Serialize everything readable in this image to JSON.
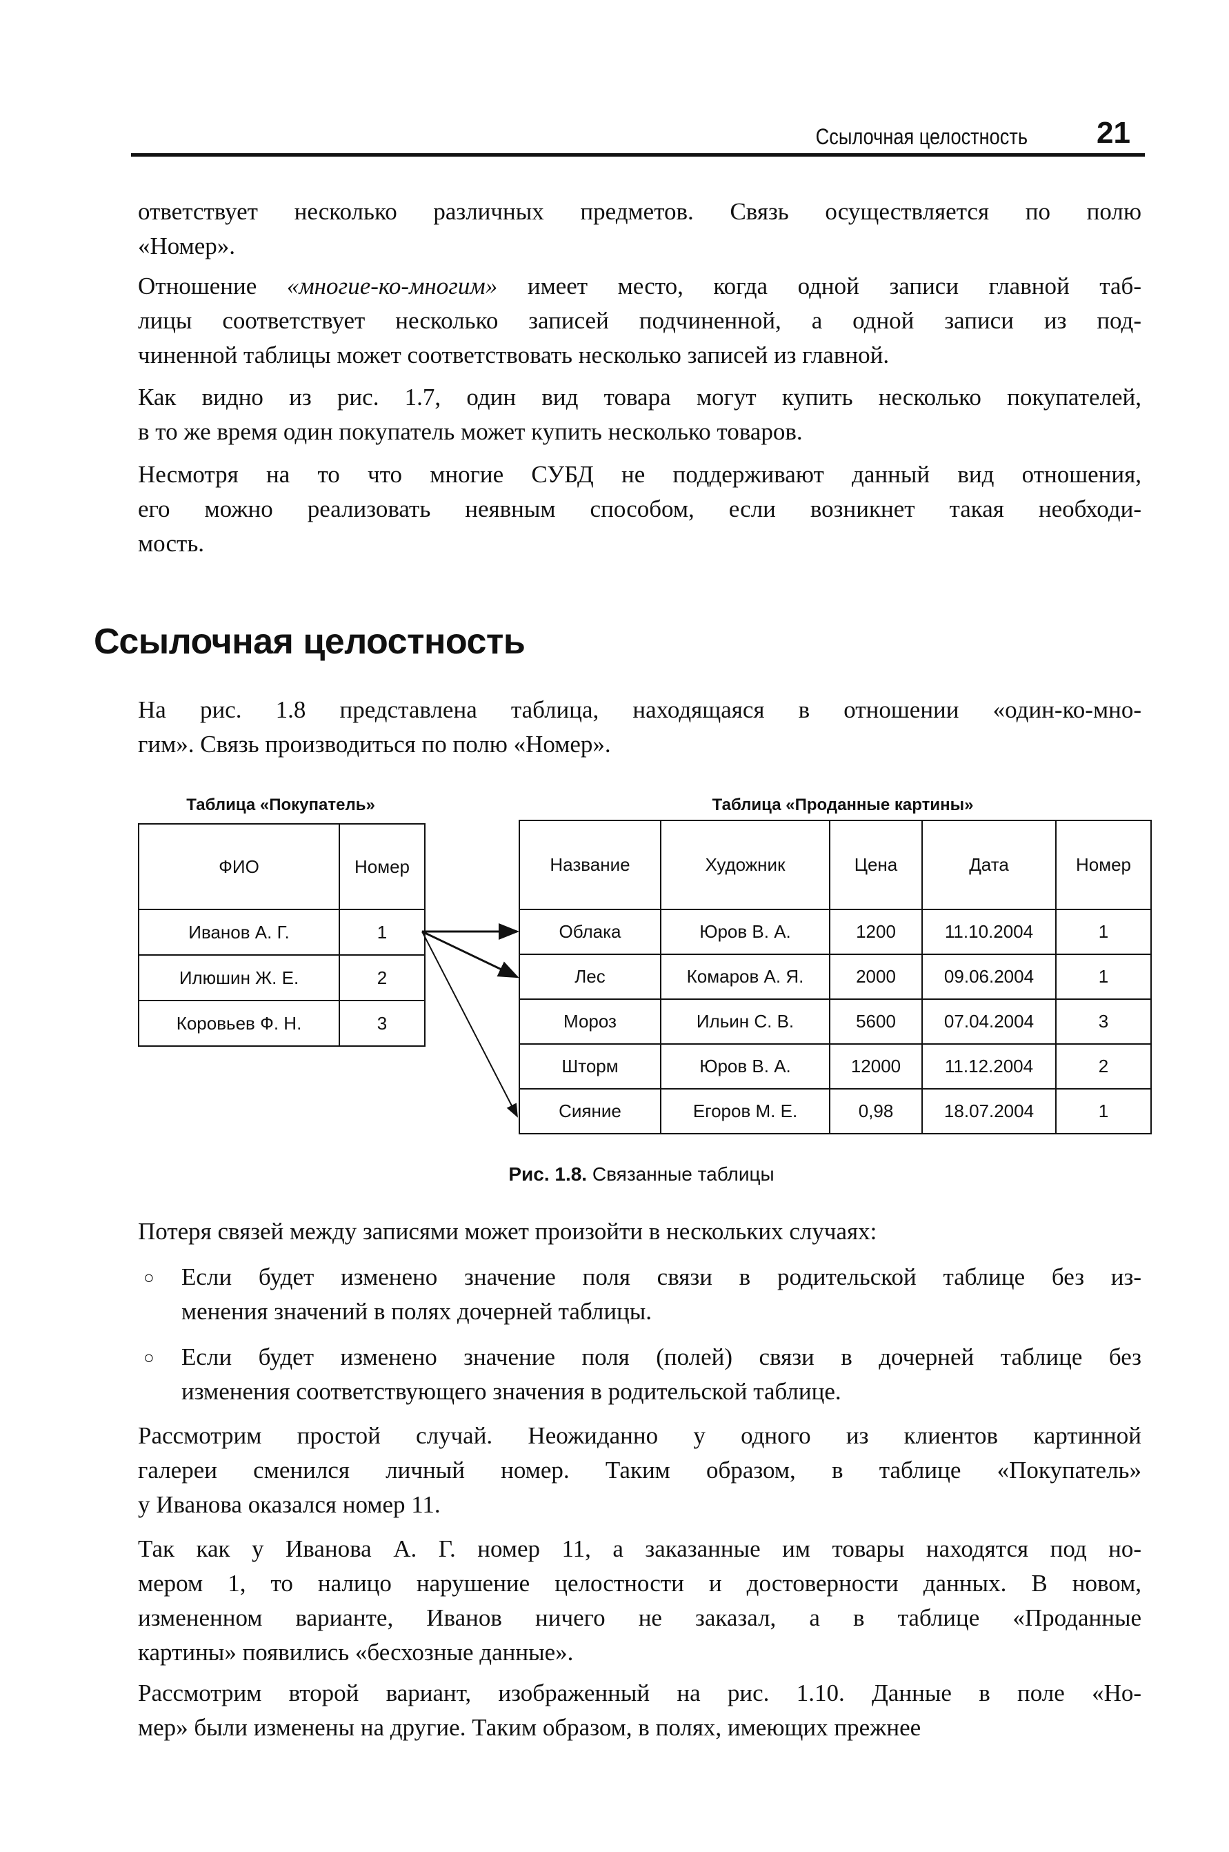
{
  "header": {
    "section_title": "Ссылочная целостность",
    "page_number": "21"
  },
  "intro_paragraphs": [
    {
      "lines": [
        "ответствует несколько различных предметов. Связь осуществляется по полю",
        "«Номер»."
      ]
    },
    {
      "lines": [
        "Отношение ",
        "«многие-ко-многим»",
        " имеет место, когда одной записи главной таб-",
        "лицы соответствует несколько записей подчиненной, а одной записи из под-",
        "чиненной таблицы может соответствовать несколько записей из главной."
      ]
    },
    {
      "lines": [
        "Как видно из рис. 1.7, один вид товара могут купить несколько покупателей,",
        "в то же время один покупатель может купить несколько товаров."
      ]
    },
    {
      "lines": [
        "Несмотря на то что многие СУБД не поддерживают данный вид отношения,",
        "его можно реализовать неявным способом, если возникнет такая необходи-",
        "мость."
      ]
    }
  ],
  "section_heading": "Ссылочная целостность",
  "section_intro": {
    "lines": [
      "На рис. 1.8 представлена таблица, находящаяся в отношении «один-ко-мно-",
      "гим». Связь производиться по полю «Номер»."
    ]
  },
  "figure": {
    "left_table": {
      "caption": "Таблица «Покупатель»",
      "headers": [
        "ФИО",
        "Номер"
      ],
      "rows": [
        [
          "Иванов А. Г.",
          "1"
        ],
        [
          "Илюшин Ж. Е.",
          "2"
        ],
        [
          "Коровьев Ф. Н.",
          "3"
        ]
      ]
    },
    "right_table": {
      "caption": "Таблица «Проданные картины»",
      "headers": [
        "Название",
        "Художник",
        "Цена",
        "Дата",
        "Номер"
      ],
      "rows": [
        [
          "Облака",
          "Юров В. А.",
          "1200",
          "11.10.2004",
          "1"
        ],
        [
          "Лес",
          "Комаров А. Я.",
          "2000",
          "09.06.2004",
          "1"
        ],
        [
          "Мороз",
          "Ильин С. В.",
          "5600",
          "07.04.2004",
          "3"
        ],
        [
          "Шторм",
          "Юров В. А.",
          "12000",
          "11.12.2004",
          "2"
        ],
        [
          "Сияние",
          "Егоров М. Е.",
          "0,98",
          "18.07.2004",
          "1"
        ]
      ]
    },
    "caption_label": "Рис. 1.8.",
    "caption_text": " Связанные таблицы"
  },
  "body": {
    "p_loss": {
      "lines": [
        "Потеря связей между записями может произойти в нескольких случаях:"
      ]
    },
    "bullets": [
      {
        "lines": [
          "Если будет изменено значение поля связи в родительской таблице без из-",
          "менения значений в полях дочерней таблицы."
        ]
      },
      {
        "lines": [
          "Если будет изменено значение поля (полей) связи в дочерней таблице без",
          "изменения соответствующего значения в родительской таблице."
        ]
      }
    ],
    "paragraphs": [
      {
        "lines": [
          "Рассмотрим простой случай. Неожиданно у одного из клиентов картинной",
          "галереи сменился личный номер. Таким образом, в таблице «Покупатель»",
          "у Иванова оказался номер 11."
        ]
      },
      {
        "lines": [
          "Так как у Иванова А. Г. номер 11, а заказанные им товары находятся под но-",
          "мером 1, то налицо нарушение целостности и достоверности данных. В новом,",
          "измененном варианте, Иванов ничего не заказал, а в таблице «Проданные",
          "картины» появились «бесхозные данные»."
        ]
      },
      {
        "lines": [
          "Рассмотрим второй вариант, изображенный на рис. 1.10. Данные в поле «Но-",
          "мер» были изменены на другие. Таким образом, в полях, имеющих прежнее"
        ]
      }
    ]
  },
  "bullet_icon": "hollow-circle-bullet"
}
